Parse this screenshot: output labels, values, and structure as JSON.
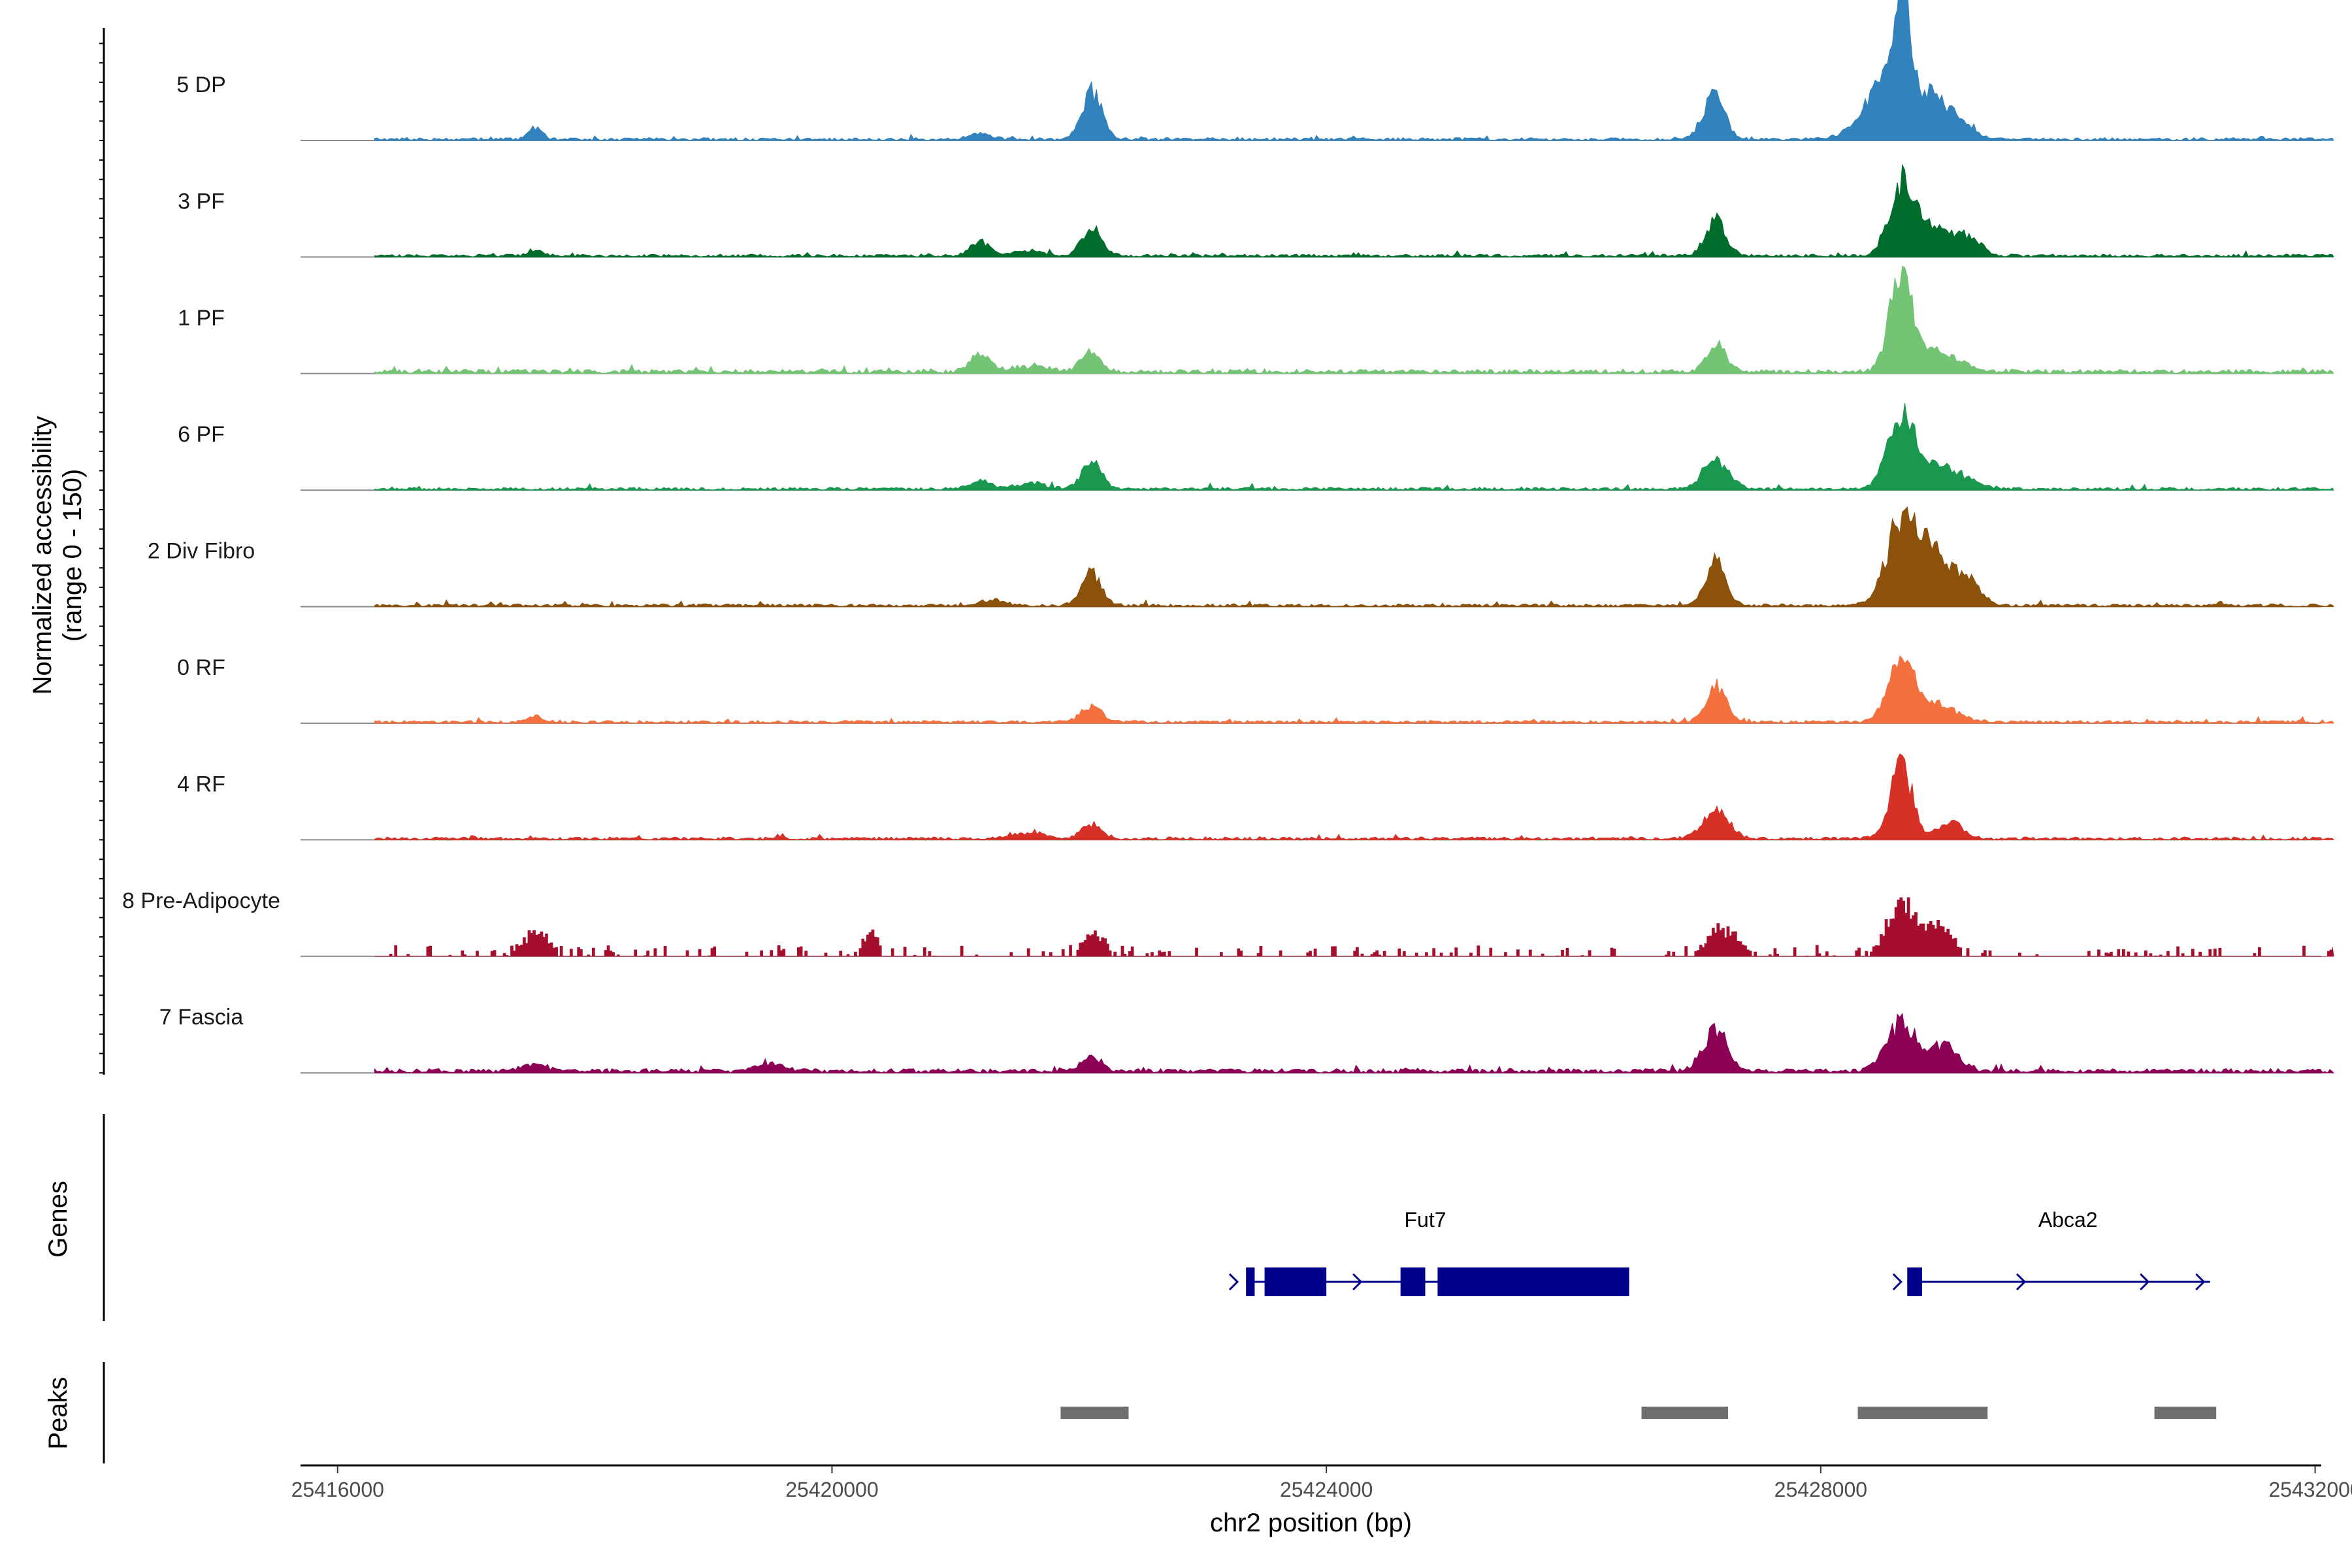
{
  "chart_data": {
    "type": "area",
    "title": "",
    "ylabel_line1": "Normalized accessibility",
    "ylabel_line2": "(range 0 - 150)",
    "ylim": [
      0,
      150
    ],
    "xlabel": "chr2 position (bp)",
    "xlim": [
      25415700,
      25432050
    ],
    "xticks": [
      25416000,
      25420000,
      25424000,
      25428000,
      25432000
    ],
    "xtick_labels": [
      "25416000",
      "25420000",
      "25424000",
      "25428000",
      "25432000"
    ],
    "data_range": [
      25416300,
      25432150
    ],
    "grid": false,
    "tracks": [
      {
        "name": "5 DP",
        "color": "#3182bd",
        "baseline": 2,
        "noise": 2,
        "sparse": false,
        "peaks": [
          [
            25417600,
            9,
            50
          ],
          [
            25421200,
            4,
            80
          ],
          [
            25422100,
            33,
            80
          ],
          [
            25427100,
            6,
            120
          ],
          [
            25427150,
            31,
            70
          ],
          [
            25428500,
            18,
            150
          ],
          [
            25428650,
            70,
            60
          ],
          [
            25428700,
            30,
            250
          ],
          [
            25429000,
            12,
            150
          ]
        ]
      },
      {
        "name": "3 PF",
        "color": "#006d2c",
        "baseline": 2,
        "noise": 2,
        "sparse": false,
        "peaks": [
          [
            25417600,
            4,
            60
          ],
          [
            25421200,
            10,
            80
          ],
          [
            25421600,
            4,
            100
          ],
          [
            25422100,
            20,
            80
          ],
          [
            25427150,
            25,
            80
          ],
          [
            25428650,
            46,
            100
          ],
          [
            25428900,
            20,
            150
          ],
          [
            25429200,
            11,
            100
          ]
        ]
      },
      {
        "name": "1 PF",
        "color": "#74c476",
        "baseline": 3,
        "noise": 3,
        "sparse": false,
        "peaks": [
          [
            25421200,
            12,
            80
          ],
          [
            25421600,
            4,
            150
          ],
          [
            25422100,
            14,
            80
          ],
          [
            25427150,
            18,
            80
          ],
          [
            25428650,
            65,
            90
          ],
          [
            25428900,
            15,
            200
          ]
        ]
      },
      {
        "name": "6 PF",
        "color": "#1a9850",
        "baseline": 2,
        "noise": 2,
        "sparse": false,
        "peaks": [
          [
            25421200,
            6,
            80
          ],
          [
            25421600,
            4,
            120
          ],
          [
            25422100,
            19,
            80
          ],
          [
            25427150,
            20,
            100
          ],
          [
            25428650,
            45,
            110
          ],
          [
            25428950,
            15,
            200
          ]
        ]
      },
      {
        "name": "2 Div Fibro",
        "color": "#8c510a",
        "baseline": 2,
        "noise": 2,
        "sparse": false,
        "peaks": [
          [
            25421300,
            4,
            100
          ],
          [
            25422100,
            22,
            80
          ],
          [
            25427150,
            30,
            80
          ],
          [
            25428650,
            55,
            120
          ],
          [
            25428900,
            35,
            150
          ],
          [
            25429200,
            15,
            100
          ]
        ]
      },
      {
        "name": "0 RF",
        "color": "#f4703f",
        "baseline": 2,
        "noise": 2,
        "sparse": false,
        "peaks": [
          [
            25417600,
            4,
            60
          ],
          [
            25422100,
            12,
            80
          ],
          [
            25427150,
            25,
            80
          ],
          [
            25428650,
            46,
            100
          ],
          [
            25428950,
            12,
            150
          ]
        ]
      },
      {
        "name": "4 RF",
        "color": "#d73027",
        "baseline": 2,
        "noise": 2,
        "sparse": false,
        "peaks": [
          [
            25421600,
            4,
            120
          ],
          [
            25422100,
            11,
            80
          ],
          [
            25427150,
            20,
            100
          ],
          [
            25428650,
            52,
            90
          ],
          [
            25429050,
            12,
            90
          ]
        ]
      },
      {
        "name": "8 Pre-Adipocyte",
        "color": "#a50f2d",
        "baseline": 0,
        "noise": 13,
        "sparse": true,
        "peaks": [
          [
            25417600,
            15,
            90
          ],
          [
            25420300,
            14,
            50
          ],
          [
            25422100,
            13,
            80
          ],
          [
            25427200,
            16,
            120
          ],
          [
            25428650,
            35,
            110
          ],
          [
            25428950,
            20,
            90
          ]
        ]
      },
      {
        "name": "7 Fascia",
        "color": "#8b0055",
        "baseline": 3,
        "noise": 3,
        "sparse": false,
        "peaks": [
          [
            25417600,
            5,
            100
          ],
          [
            25419500,
            5,
            100
          ],
          [
            25422100,
            10,
            80
          ],
          [
            25427150,
            27,
            100
          ],
          [
            25428650,
            33,
            120
          ],
          [
            25429000,
            18,
            120
          ]
        ]
      }
    ],
    "genes_label": "Genes",
    "genes": [
      {
        "name": "Fut7",
        "color": "#00008b",
        "line": [
          25423350,
          25426450
        ],
        "exons": [
          [
            25423350,
            25423420
          ],
          [
            25423500,
            25424000
          ],
          [
            25424600,
            25424800
          ],
          [
            25424900,
            25426450
          ]
        ],
        "arrows": [
          25423280,
          25424280
        ],
        "label_x": 25424800
      },
      {
        "name": "Abca2",
        "color": "#00008b",
        "line": [
          25428700,
          25431150
        ],
        "exons": [
          [
            25428700,
            25428820
          ]
        ],
        "arrows": [
          25428650,
          25429650,
          25430650,
          25431100
        ],
        "label_x": 25430000
      }
    ],
    "peaks_label": "Peaks",
    "peak_regions": [
      [
        25421850,
        25422400
      ],
      [
        25426550,
        25427250
      ],
      [
        25428300,
        25429350
      ],
      [
        25430700,
        25431200
      ]
    ],
    "peak_color": "#6e6e6e"
  }
}
